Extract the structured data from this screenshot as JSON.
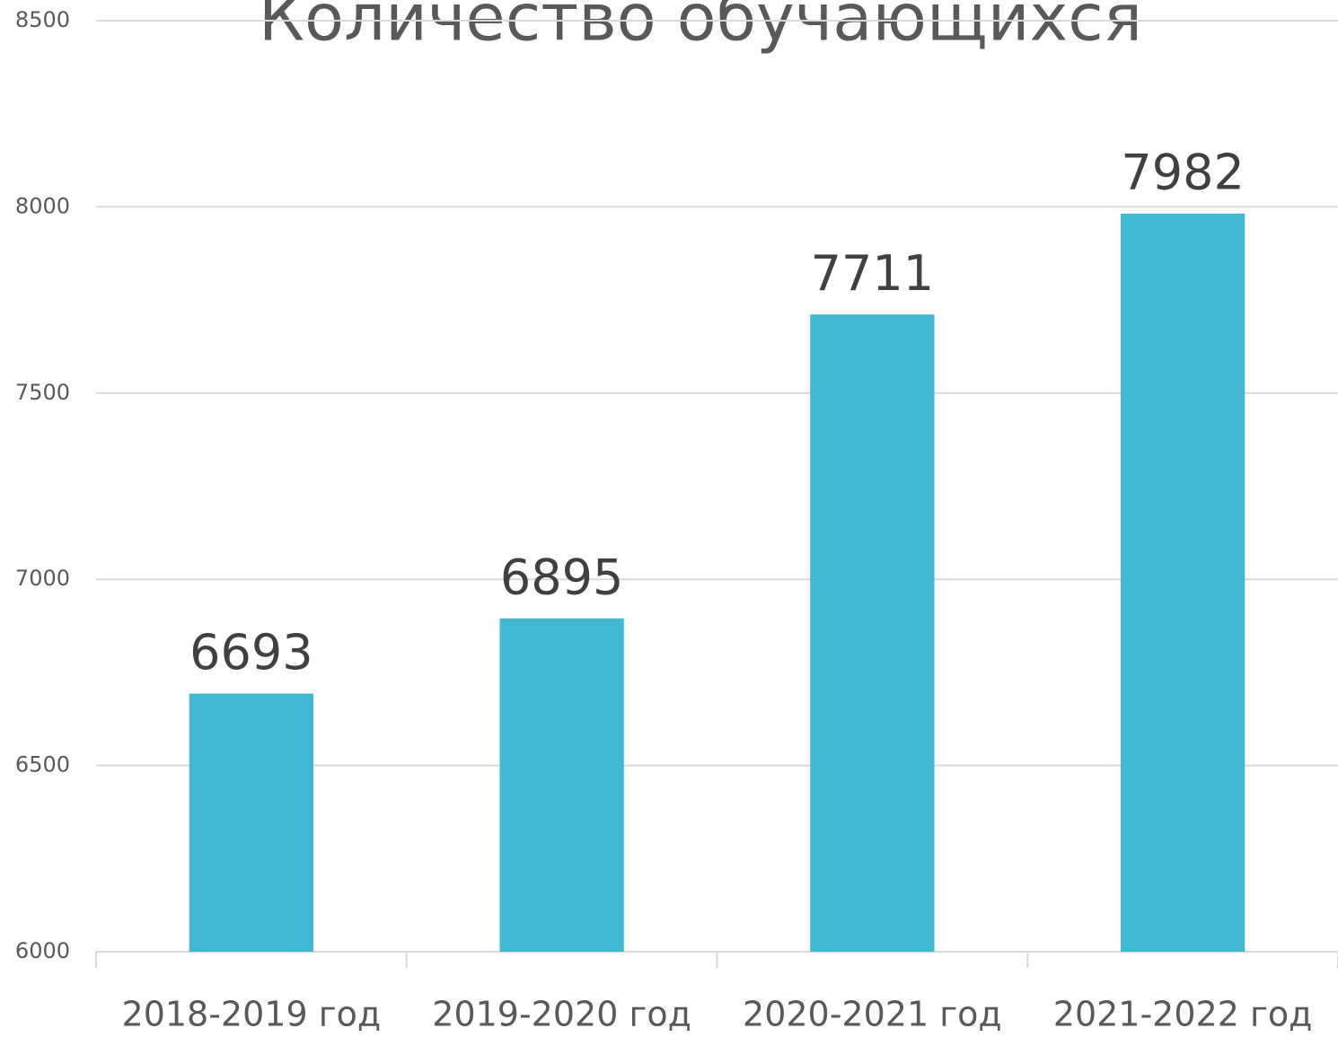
{
  "chart_data": {
    "type": "bar",
    "title": "Количество обучающихся",
    "categories": [
      "2018-2019 год",
      "2019-2020 год",
      "2020-2021 год",
      "2021-2022 год"
    ],
    "values": [
      6693,
      6895,
      7711,
      7982
    ],
    "color": "#41b8d2",
    "ylim": [
      6000,
      8500
    ],
    "yticks": [
      6000,
      6500,
      7000,
      7500,
      8000,
      8500
    ],
    "grid": true
  }
}
